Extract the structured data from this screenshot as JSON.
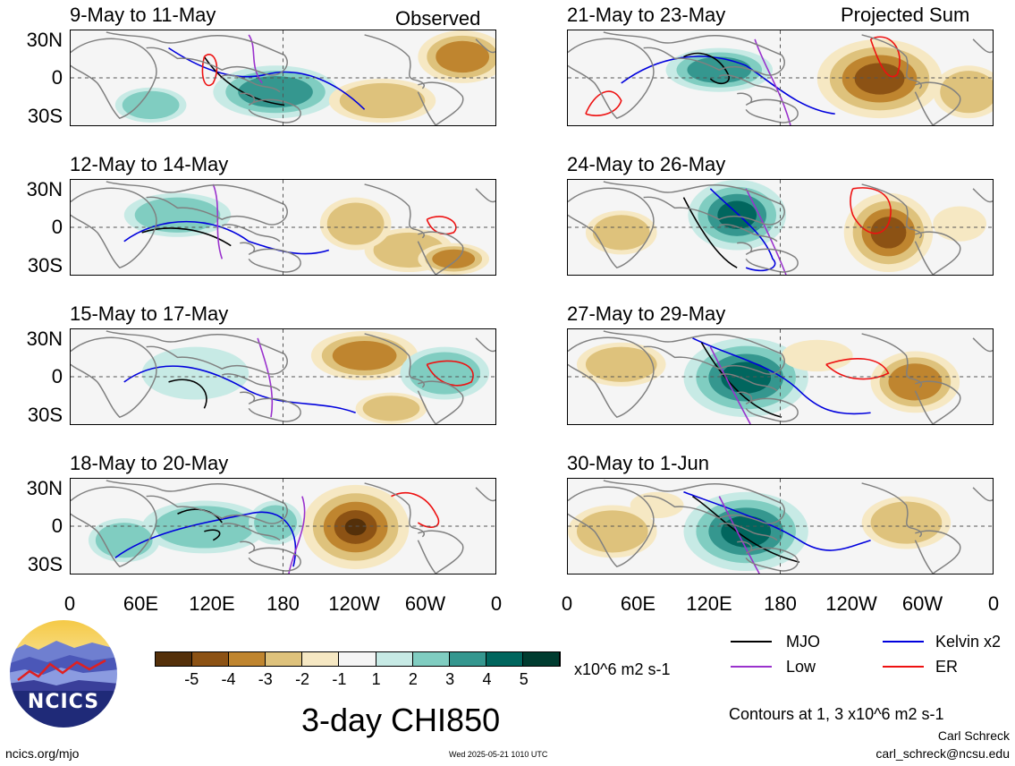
{
  "panels": [
    {
      "id": "p1",
      "title": "9-May to 11-May",
      "tag": "Observed"
    },
    {
      "id": "p2",
      "title": "12-May to 14-May",
      "tag": ""
    },
    {
      "id": "p3",
      "title": "15-May to 17-May",
      "tag": ""
    },
    {
      "id": "p4",
      "title": "18-May to 20-May",
      "tag": ""
    },
    {
      "id": "p5",
      "title": "21-May to 23-May",
      "tag": "Projected Sum"
    },
    {
      "id": "p6",
      "title": "24-May to 26-May",
      "tag": ""
    },
    {
      "id": "p7",
      "title": "27-May to 29-May",
      "tag": ""
    },
    {
      "id": "p8",
      "title": "30-May to 1-Jun",
      "tag": ""
    }
  ],
  "lat_labels": [
    "30N",
    "0",
    "30S"
  ],
  "lon_labels": [
    "0",
    "60E",
    "120E",
    "180",
    "120W",
    "60W",
    "0"
  ],
  "colorbar": {
    "labels": [
      "-5",
      "-4",
      "-3",
      "-2",
      "-1",
      "1",
      "2",
      "3",
      "4",
      "5"
    ],
    "colors": [
      "#54300a",
      "#8c5214",
      "#bf852f",
      "#dec27c",
      "#f6e8c3",
      "#f5f5f5",
      "#c7eae5",
      "#80cdc1",
      "#35978f",
      "#01665e",
      "#003c30"
    ],
    "units": "x10^6 m2 s-1"
  },
  "legend": {
    "items": [
      {
        "label": "MJO",
        "color": "#000000"
      },
      {
        "label": "Kelvin x2",
        "color": "#0000dd"
      },
      {
        "label": "Low",
        "color": "#9a32cd"
      },
      {
        "label": "ER",
        "color": "#ee1111"
      }
    ],
    "contours_note": "Contours at 1, 3 x10^6 m2 s-1"
  },
  "main_title": "3-day CHI850",
  "logo_text": "NCICS",
  "footer": {
    "left": "ncics.org/mjo",
    "center": "Wed 2025-05-21 1010 UTC",
    "author": "Carl Schreck",
    "email": "carl_schreck@ncsu.edu"
  }
}
